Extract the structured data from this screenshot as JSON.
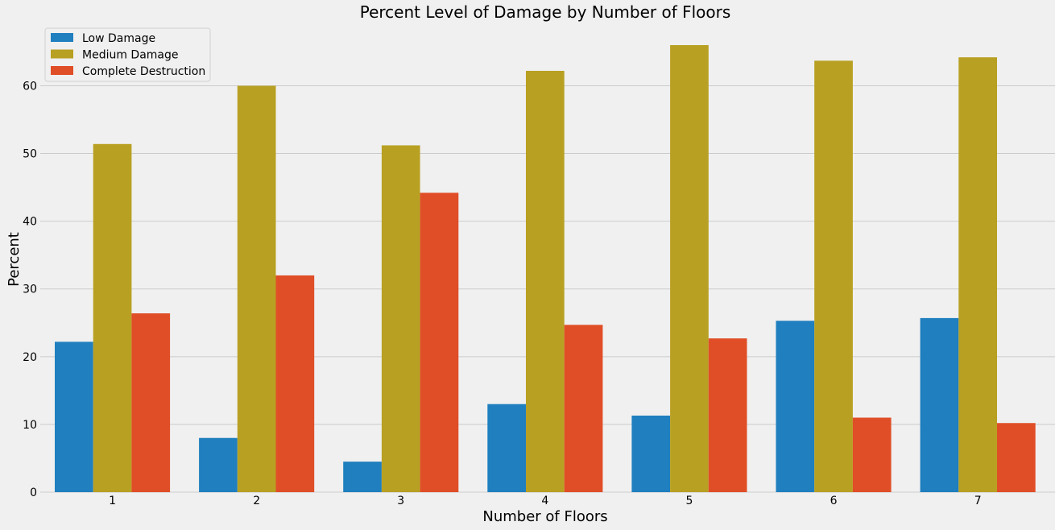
{
  "chart_data": {
    "type": "bar",
    "title": "Percent Level of Damage by Number of Floors",
    "xlabel": "Number of Floors",
    "ylabel": "Percent",
    "categories": [
      "1",
      "2",
      "3",
      "4",
      "5",
      "6",
      "7"
    ],
    "series": [
      {
        "name": "Low Damage",
        "color": "#1f7fbf",
        "values": [
          22.2,
          8.0,
          4.5,
          13.0,
          11.3,
          25.3,
          25.7
        ]
      },
      {
        "name": "Medium Damage",
        "color": "#b8a022",
        "values": [
          51.4,
          60.0,
          51.2,
          62.2,
          66.0,
          63.7,
          64.2
        ]
      },
      {
        "name": "Complete Destruction",
        "color": "#e04e27",
        "values": [
          26.4,
          32.0,
          44.2,
          24.7,
          22.7,
          11.0,
          10.2
        ]
      }
    ],
    "ylim": [
      0,
      68.5
    ],
    "yticks": [
      0,
      10,
      20,
      30,
      40,
      50,
      60
    ],
    "grid": true,
    "legend_position": "top-left"
  }
}
